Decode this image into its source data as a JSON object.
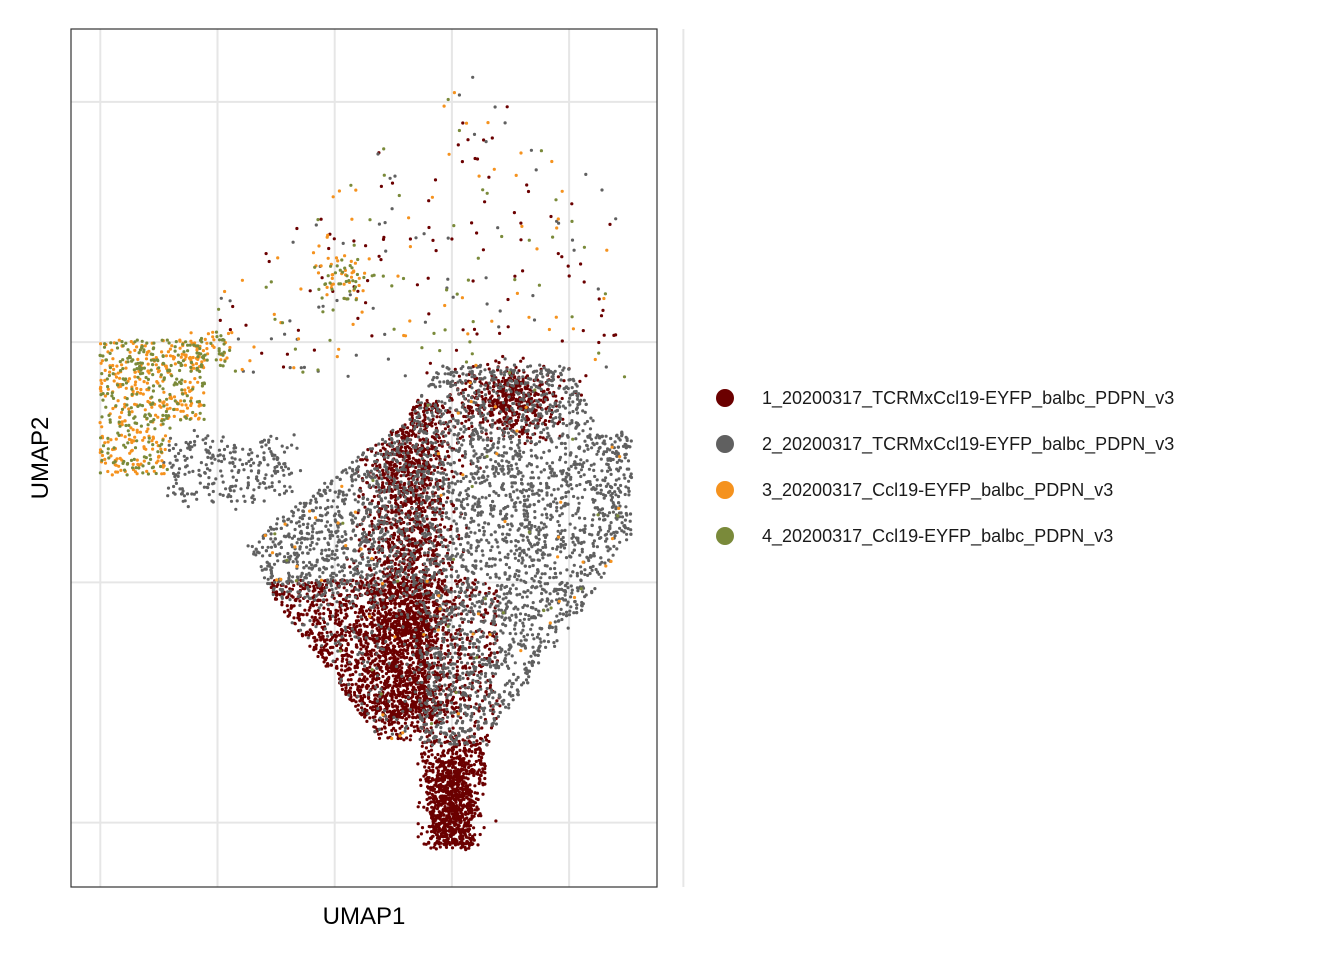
{
  "chart_data": {
    "type": "scatter",
    "title": "",
    "xlabel": "UMAP1",
    "ylabel": "UMAP2",
    "xlim": [
      -10,
      10
    ],
    "ylim": [
      -10,
      10
    ],
    "x_gridlines": [
      -9,
      -5,
      -1,
      3,
      7,
      10.9
    ],
    "y_gridlines": [
      -8.5,
      -2.9,
      2.7,
      8.3
    ],
    "tick_labels_shown": false,
    "grid": true,
    "legend_position": "right",
    "series": [
      {
        "name": "1_20200317_TCRMxCcl19-EYFP_balbc_PDPN_v3",
        "color": "#6b0000"
      },
      {
        "name": "2_20200317_TCRMxCcl19-EYFP_balbc_PDPN_v3",
        "color": "#606060"
      },
      {
        "name": "3_20200317_Ccl19-EYFP_balbc_PDPN_v3",
        "color": "#f5921e"
      },
      {
        "name": "4_20200317_Ccl19-EYFP_balbc_PDPN_v3",
        "color": "#7a8a3a"
      }
    ]
  }
}
